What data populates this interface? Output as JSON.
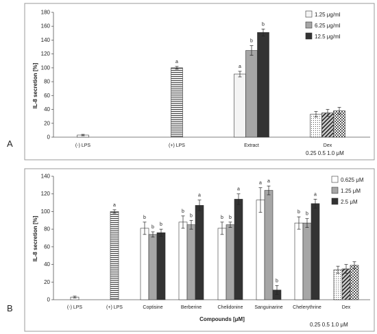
{
  "colors": {
    "white_bar": "#f4f4f4",
    "mid_gray": "#a6a6a6",
    "dark": "#333333",
    "axis": "#555555"
  },
  "chart_data": [
    {
      "panel_label": "A",
      "type": "bar",
      "ylabel": "IL-8 secretion [%]",
      "ylim": [
        0,
        180
      ],
      "yticks": [
        0,
        20,
        40,
        60,
        80,
        100,
        120,
        140,
        160,
        180
      ],
      "grid": false,
      "legend_position": "top-right",
      "categories": [
        "(-) LPS",
        "(+) LPS",
        "Extract",
        "Dex"
      ],
      "dex_doses": "0.25  0.5  1.0 μM",
      "legend": [
        {
          "label": "1.25 μg/ml",
          "fill": "light"
        },
        {
          "label": "6.25 μg/ml",
          "fill": "mid"
        },
        {
          "label": "12.5 μg/ml",
          "fill": "dark"
        }
      ],
      "bars": [
        {
          "category": "(-) LPS",
          "value": 3,
          "error": 1,
          "fill": "white",
          "letter": ""
        },
        {
          "category": "(+) LPS",
          "value": 100,
          "error": 2,
          "fill": "hstripe",
          "letter": "a"
        },
        {
          "category": "Extract",
          "value": 91,
          "error": 4,
          "fill": "light",
          "letter": "a"
        },
        {
          "category": "Extract",
          "value": 125,
          "error": 7,
          "fill": "mid",
          "letter": "b"
        },
        {
          "category": "Extract",
          "value": 151,
          "error": 5,
          "fill": "dark",
          "letter": "b"
        },
        {
          "category": "Dex",
          "value": 33,
          "error": 4,
          "fill": "dots",
          "letter": ""
        },
        {
          "category": "Dex",
          "value": 35,
          "error": 5,
          "fill": "hatch",
          "letter": ""
        },
        {
          "category": "Dex",
          "value": 38,
          "error": 5,
          "fill": "checker",
          "letter": ""
        }
      ]
    },
    {
      "panel_label": "B",
      "type": "bar",
      "ylabel": "IL-8 secretion [%]",
      "xlabel": "Compounds [μM]",
      "ylim": [
        0,
        140
      ],
      "yticks": [
        0,
        20,
        40,
        60,
        80,
        100,
        120,
        140
      ],
      "grid": false,
      "legend_position": "top-right",
      "categories": [
        "(-) LPS",
        "(+) LPS",
        "Coptisine",
        "Berberine",
        "Chelidonine",
        "Sanguinarine",
        "Chelerythrine",
        "Dex"
      ],
      "dex_doses": "0.25  0.5  1.0 μM",
      "legend": [
        {
          "label": "0.625 μM",
          "fill": "white"
        },
        {
          "label": "1.25 μM",
          "fill": "mid"
        },
        {
          "label": "2.5 μM",
          "fill": "dark"
        }
      ],
      "bars": [
        {
          "category": "(-) LPS",
          "value": 3,
          "error": 1,
          "fill": "white",
          "letter": ""
        },
        {
          "category": "(+) LPS",
          "value": 100,
          "error": 2,
          "fill": "hstripe",
          "letter": "a"
        },
        {
          "category": "Coptisine",
          "value": 81,
          "error": 7,
          "fill": "white",
          "letter": "b"
        },
        {
          "category": "Coptisine",
          "value": 74,
          "error": 3,
          "fill": "mid",
          "letter": "b"
        },
        {
          "category": "Coptisine",
          "value": 76,
          "error": 4,
          "fill": "dark",
          "letter": "b"
        },
        {
          "category": "Berberine",
          "value": 88,
          "error": 7,
          "fill": "white",
          "letter": "b"
        },
        {
          "category": "Berberine",
          "value": 85,
          "error": 5,
          "fill": "mid",
          "letter": "b"
        },
        {
          "category": "Berberine",
          "value": 107,
          "error": 6,
          "fill": "dark",
          "letter": "a"
        },
        {
          "category": "Chelidonine",
          "value": 81,
          "error": 7,
          "fill": "white",
          "letter": "b"
        },
        {
          "category": "Chelidonine",
          "value": 85,
          "error": 3,
          "fill": "mid",
          "letter": "b"
        },
        {
          "category": "Chelidonine",
          "value": 114,
          "error": 6,
          "fill": "dark",
          "letter": "a"
        },
        {
          "category": "Sanguinarine",
          "value": 113,
          "error": 14,
          "fill": "white",
          "letter": "a"
        },
        {
          "category": "Sanguinarine",
          "value": 124,
          "error": 5,
          "fill": "mid",
          "letter": "a"
        },
        {
          "category": "Sanguinarine",
          "value": 11,
          "error": 5,
          "fill": "dark",
          "letter": "b"
        },
        {
          "category": "Chelerythrine",
          "value": 87,
          "error": 7,
          "fill": "white",
          "letter": "b"
        },
        {
          "category": "Chelerythrine",
          "value": 87,
          "error": 5,
          "fill": "mid",
          "letter": "b"
        },
        {
          "category": "Chelerythrine",
          "value": 109,
          "error": 5,
          "fill": "dark",
          "letter": "a"
        },
        {
          "category": "Dex",
          "value": 34,
          "error": 4,
          "fill": "dots",
          "letter": ""
        },
        {
          "category": "Dex",
          "value": 35,
          "error": 5,
          "fill": "hatch",
          "letter": ""
        },
        {
          "category": "Dex",
          "value": 39,
          "error": 4,
          "fill": "checker",
          "letter": ""
        }
      ]
    }
  ]
}
